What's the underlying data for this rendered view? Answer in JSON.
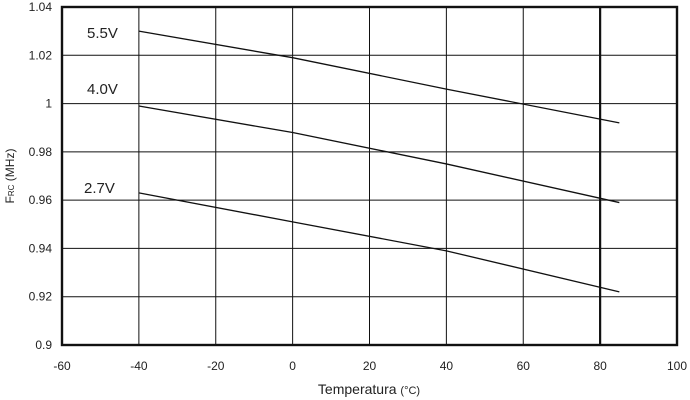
{
  "chart_data": {
    "type": "line",
    "title": "",
    "xlabel": "Temperatura",
    "xlabel_unit": "(°C)",
    "ylabel_main": "F",
    "ylabel_sub": "RC",
    "ylabel_unit": "(MHz)",
    "xlim": [
      -60,
      100
    ],
    "ylim": [
      0.9,
      1.04
    ],
    "xticks": [
      -60,
      -40,
      -20,
      0,
      20,
      40,
      60,
      80,
      100
    ],
    "xtick_labels": [
      "-60",
      "-40",
      "-20",
      "0",
      "20",
      "40",
      "60",
      "80",
      "100"
    ],
    "yticks": [
      0.9,
      0.92,
      0.94,
      0.96,
      0.98,
      1.0,
      1.02,
      1.04
    ],
    "ytick_labels": [
      "0.9",
      "0.92",
      "0.94",
      "0.96",
      "0.98",
      "1",
      "1.02",
      "1.04"
    ],
    "grid": true,
    "highlight_x": 80,
    "series": [
      {
        "name": "5.5V",
        "x": [
          -40,
          0,
          40,
          85
        ],
        "y": [
          1.03,
          1.019,
          1.006,
          0.992
        ]
      },
      {
        "name": "4.0V",
        "x": [
          -40,
          0,
          40,
          85
        ],
        "y": [
          0.999,
          0.988,
          0.975,
          0.959
        ]
      },
      {
        "name": "2.7V",
        "x": [
          -40,
          0,
          40,
          85
        ],
        "y": [
          0.963,
          0.951,
          0.939,
          0.922
        ]
      }
    ]
  }
}
